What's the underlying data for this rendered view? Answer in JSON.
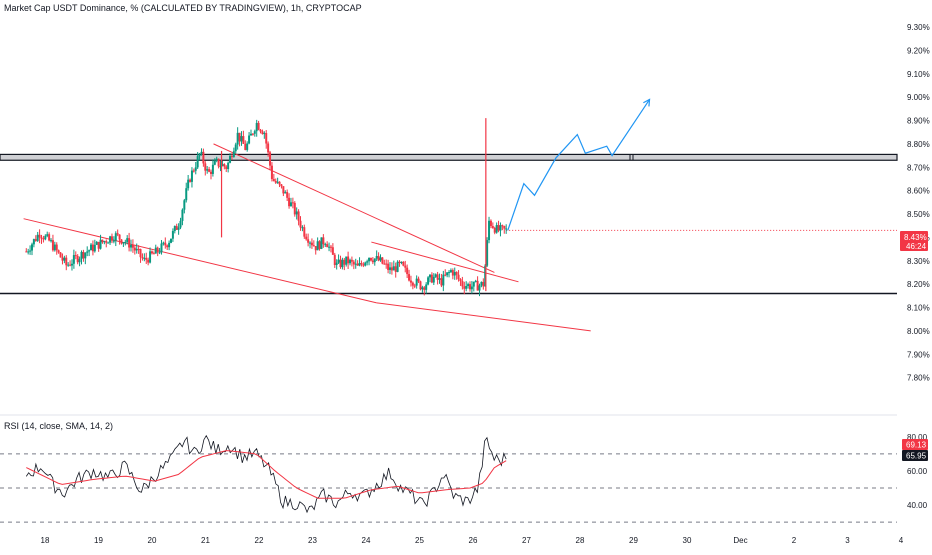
{
  "header": {
    "title": "Market Cap USDT Dominance, % (CALCULATED BY TRADINGVIEW), 1h, CRYPTOCAP"
  },
  "rsi_panel": {
    "title": "RSI (14, close, SMA, 14, 2)"
  },
  "price_badge": {
    "value": "8.43%",
    "countdown": "46:24",
    "color": "#f23645"
  },
  "rsi_badges": [
    {
      "value": "69.13",
      "color": "#f23645"
    },
    {
      "value": "65.95",
      "color": "#131722"
    }
  ],
  "colors": {
    "up": "#089981",
    "down": "#f23645",
    "trendline": "#f23645",
    "projection": "#2196f3",
    "rsi": "#131722",
    "rsi_ma": "#f23645",
    "resistance_zone": "#787b86"
  },
  "chart_data": [
    {
      "type": "candlestick",
      "title": "Market Cap USDT Dominance, % (CALCULATED BY TRADINGVIEW), 1h, CRYPTOCAP",
      "x_categories": [
        "18",
        "19",
        "20",
        "21",
        "22",
        "23",
        "24",
        "25",
        "26",
        "27",
        "28",
        "29",
        "30",
        "Dec",
        "2",
        "3",
        "4"
      ],
      "ylim": [
        7.73,
        9.33
      ],
      "yticks": [
        "9.30%",
        "9.20%",
        "9.10%",
        "9.00%",
        "8.90%",
        "8.80%",
        "8.70%",
        "8.60%",
        "8.50%",
        "8.40%",
        "8.30%",
        "8.20%",
        "8.10%",
        "8.00%",
        "7.90%",
        "7.80%"
      ],
      "grid": false,
      "anchors": [
        [
          -0.35,
          8.34
        ],
        [
          -0.1,
          8.42
        ],
        [
          0.1,
          8.38
        ],
        [
          0.4,
          8.28
        ],
        [
          0.7,
          8.33
        ],
        [
          1.0,
          8.37
        ],
        [
          1.3,
          8.41
        ],
        [
          1.6,
          8.37
        ],
        [
          1.85,
          8.3
        ],
        [
          2.1,
          8.34
        ],
        [
          2.3,
          8.38
        ],
        [
          2.5,
          8.46
        ],
        [
          2.7,
          8.65
        ],
        [
          2.9,
          8.76
        ],
        [
          3.05,
          8.67
        ],
        [
          3.2,
          8.72
        ],
        [
          3.4,
          8.7
        ],
        [
          3.6,
          8.84
        ],
        [
          3.75,
          8.78
        ],
        [
          3.95,
          8.89
        ],
        [
          4.1,
          8.85
        ],
        [
          4.25,
          8.65
        ],
        [
          4.45,
          8.6
        ],
        [
          4.65,
          8.52
        ],
        [
          4.85,
          8.42
        ],
        [
          5.05,
          8.36
        ],
        [
          5.25,
          8.39
        ],
        [
          5.45,
          8.28
        ],
        [
          5.65,
          8.3
        ],
        [
          5.85,
          8.27
        ],
        [
          6.05,
          8.32
        ],
        [
          6.25,
          8.3
        ],
        [
          6.45,
          8.26
        ],
        [
          6.65,
          8.28
        ],
        [
          6.85,
          8.22
        ],
        [
          7.05,
          8.19
        ],
        [
          7.25,
          8.23
        ],
        [
          7.4,
          8.21
        ],
        [
          7.6,
          8.26
        ],
        [
          7.8,
          8.2
        ],
        [
          8.0,
          8.19
        ],
        [
          8.2,
          8.2
        ],
        [
          8.25,
          8.34
        ],
        [
          8.3,
          8.47
        ],
        [
          8.45,
          8.43
        ],
        [
          8.62,
          8.43
        ]
      ],
      "spikes": [
        {
          "x": 3.3,
          "high": 8.77,
          "low": 8.4
        },
        {
          "x": 8.24,
          "high": 8.91,
          "low": 8.17
        }
      ],
      "last_price": 8.43,
      "support_level": 8.16,
      "resistance_zone": [
        8.73,
        8.755
      ],
      "trendlines": [
        {
          "from": [
            -0.4,
            8.48
          ],
          "to": [
            6.2,
            8.12
          ]
        },
        {
          "from": [
            6.2,
            8.12
          ],
          "to": [
            10.2,
            8.0
          ]
        },
        {
          "from": [
            3.15,
            8.8
          ],
          "to": [
            8.4,
            8.25
          ]
        },
        {
          "from": [
            6.1,
            8.38
          ],
          "to": [
            8.85,
            8.21
          ]
        }
      ],
      "projection": [
        [
          8.65,
          8.43
        ],
        [
          8.95,
          8.63
        ],
        [
          9.15,
          8.58
        ],
        [
          9.55,
          8.74
        ],
        [
          9.95,
          8.84
        ],
        [
          10.1,
          8.76
        ],
        [
          10.5,
          8.79
        ],
        [
          10.6,
          8.75
        ],
        [
          11.3,
          8.99
        ]
      ]
    },
    {
      "type": "line",
      "title": "RSI (14, close, SMA, 14, 2)",
      "ylim": [
        33,
        84
      ],
      "yticks": [
        "80.00",
        "60.00",
        "40.00"
      ],
      "levels": [
        70,
        50,
        30
      ],
      "series": [
        {
          "anchors": [
            [
              -0.35,
              58
            ],
            [
              -0.05,
              63
            ],
            [
              0.15,
              52
            ],
            [
              0.35,
              47
            ],
            [
              0.6,
              55
            ],
            [
              0.9,
              60
            ],
            [
              1.2,
              56
            ],
            [
              1.5,
              63
            ],
            [
              1.8,
              48
            ],
            [
              2.05,
              57
            ],
            [
              2.35,
              66
            ],
            [
              2.6,
              78
            ],
            [
              2.8,
              70
            ],
            [
              3.0,
              79
            ],
            [
              3.2,
              72
            ],
            [
              3.45,
              75
            ],
            [
              3.7,
              68
            ],
            [
              3.95,
              70
            ],
            [
              4.2,
              60
            ],
            [
              4.45,
              42
            ],
            [
              4.7,
              41
            ],
            [
              4.95,
              36
            ],
            [
              5.2,
              46
            ],
            [
              5.45,
              41
            ],
            [
              5.7,
              48
            ],
            [
              5.95,
              45
            ],
            [
              6.2,
              52
            ],
            [
              6.45,
              59
            ],
            [
              6.65,
              50
            ],
            [
              6.85,
              46
            ],
            [
              7.05,
              40
            ],
            [
              7.25,
              47
            ],
            [
              7.45,
              58
            ],
            [
              7.65,
              45
            ],
            [
              7.9,
              42
            ],
            [
              8.1,
              50
            ],
            [
              8.24,
              79
            ],
            [
              8.4,
              67
            ],
            [
              8.55,
              66
            ],
            [
              8.62,
              69
            ]
          ]
        },
        {
          "anchors": [
            [
              -0.35,
              62
            ],
            [
              0.3,
              52
            ],
            [
              0.9,
              55
            ],
            [
              1.5,
              57
            ],
            [
              2.05,
              54
            ],
            [
              2.5,
              58
            ],
            [
              2.9,
              68
            ],
            [
              3.4,
              72
            ],
            [
              3.95,
              70
            ],
            [
              4.3,
              60
            ],
            [
              4.7,
              50
            ],
            [
              5.1,
              44
            ],
            [
              5.6,
              44
            ],
            [
              6.1,
              49
            ],
            [
              6.6,
              51
            ],
            [
              7.0,
              47
            ],
            [
              7.5,
              49
            ],
            [
              7.95,
              50
            ],
            [
              8.2,
              53
            ],
            [
              8.4,
              62
            ],
            [
              8.62,
              66
            ]
          ]
        }
      ]
    }
  ]
}
